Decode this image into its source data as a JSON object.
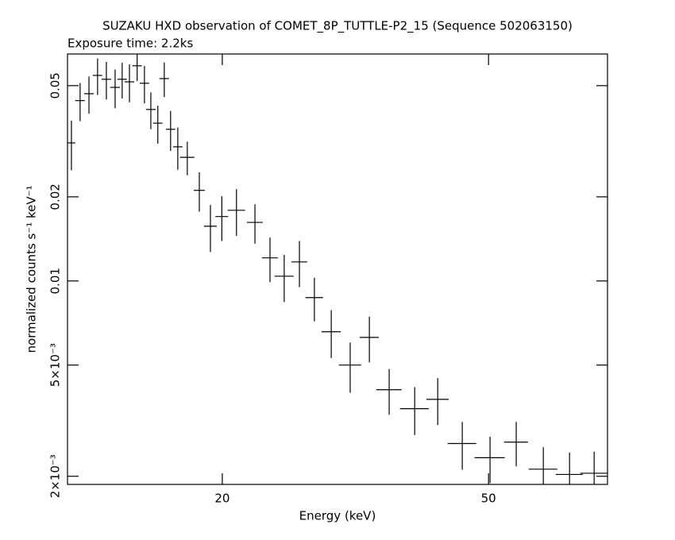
{
  "chart_data": {
    "type": "errorbar",
    "title": "SUZAKU HXD observation of COMET_8P_TUTTLE-P2_15 (Sequence 502063150)",
    "subtitle": "Exposure time: 2.2ks",
    "x_label": "Energy (keV)",
    "y_label": "normalized counts s⁻¹ keV⁻¹",
    "log_x": true,
    "log_y": true,
    "color": "#000000",
    "xlim": [
      11.74,
      75.3
    ],
    "ylim": [
      0.00187,
      0.0649
    ],
    "xticks": [
      20,
      50
    ],
    "yticks": [
      {
        "value": 0.002,
        "label": "2×10⁻³"
      },
      {
        "value": 0.005,
        "label": "5×10⁻³"
      },
      0.01,
      0.02,
      0.05
    ],
    "x": [
      11.9,
      12.26,
      12.64,
      13.02,
      13.42,
      13.83,
      14.17,
      14.53,
      14.92,
      15.3,
      15.64,
      16.02,
      16.38,
      16.74,
      17.16,
      17.73,
      18.48,
      19.2,
      19.97,
      21.0,
      22.38,
      23.57,
      24.75,
      26.08,
      27.46,
      29.1,
      31.06,
      33.18,
      35.52,
      38.78,
      41.98,
      45.68,
      50.26,
      55.0,
      60.38,
      66.08,
      71.92
    ],
    "xerr": [
      0.16,
      0.2,
      0.21,
      0.21,
      0.22,
      0.23,
      0.23,
      0.24,
      0.24,
      0.25,
      0.26,
      0.26,
      0.27,
      0.27,
      0.28,
      0.44,
      0.35,
      0.42,
      0.44,
      0.63,
      0.61,
      0.64,
      0.81,
      0.71,
      0.83,
      0.96,
      1.19,
      1.09,
      1.55,
      1.91,
      1.61,
      2.25,
      2.61,
      2.26,
      2.97,
      3.07,
      3.34
    ],
    "values": [
      0.0312,
      0.0442,
      0.0468,
      0.0544,
      0.0527,
      0.0493,
      0.0527,
      0.0516,
      0.0589,
      0.051,
      0.0411,
      0.0367,
      0.053,
      0.0349,
      0.0302,
      0.0277,
      0.0211,
      0.0157,
      0.017,
      0.0179,
      0.0162,
      0.0121,
      0.0104,
      0.0117,
      0.00872,
      0.00658,
      0.005,
      0.00628,
      0.00408,
      0.00349,
      0.00377,
      0.00262,
      0.00233,
      0.00265,
      0.00212,
      0.00203,
      0.00205
    ],
    "yerr": [
      0.0063,
      0.0069,
      0.0071,
      0.0081,
      0.0081,
      0.0078,
      0.0077,
      0.008,
      0.007,
      0.0078,
      0.0062,
      0.0057,
      0.0075,
      0.0057,
      0.0052,
      0.0038,
      0.0034,
      0.003,
      0.0031,
      0.0034,
      0.0026,
      0.0022,
      0.002,
      0.0022,
      0.00155,
      0.00128,
      0.00102,
      0.00117,
      0.00076,
      0.00068,
      0.00072,
      0.00051,
      0.00044,
      0.00048,
      0.00042,
      0.0004,
      0.0004
    ]
  }
}
